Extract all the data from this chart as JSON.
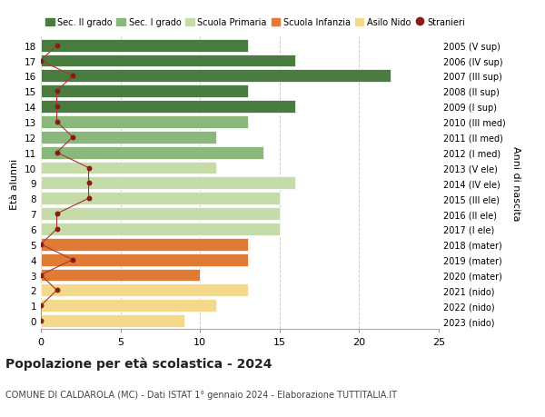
{
  "ages": [
    18,
    17,
    16,
    15,
    14,
    13,
    12,
    11,
    10,
    9,
    8,
    7,
    6,
    5,
    4,
    3,
    2,
    1,
    0
  ],
  "bar_values": [
    13,
    16,
    22,
    13,
    16,
    13,
    11,
    14,
    11,
    16,
    15,
    15,
    15,
    13,
    13,
    10,
    13,
    11,
    9
  ],
  "bar_colors": [
    "#4a7c40",
    "#4a7c40",
    "#4a7c40",
    "#4a7c40",
    "#4a7c40",
    "#8ab87a",
    "#8ab87a",
    "#8ab87a",
    "#c5dba8",
    "#c5dba8",
    "#c5dba8",
    "#c5dba8",
    "#c5dba8",
    "#e07b35",
    "#e07b35",
    "#e07b35",
    "#f5d98a",
    "#f5d98a",
    "#f5d98a"
  ],
  "stranieri_values": [
    1,
    0,
    2,
    1,
    1,
    1,
    2,
    1,
    3,
    3,
    3,
    1,
    1,
    0,
    2,
    0,
    1,
    0,
    0
  ],
  "right_labels": [
    "2005 (V sup)",
    "2006 (IV sup)",
    "2007 (III sup)",
    "2008 (II sup)",
    "2009 (I sup)",
    "2010 (III med)",
    "2011 (II med)",
    "2012 (I med)",
    "2013 (V ele)",
    "2014 (IV ele)",
    "2015 (III ele)",
    "2016 (II ele)",
    "2017 (I ele)",
    "2018 (mater)",
    "2019 (mater)",
    "2020 (mater)",
    "2021 (nido)",
    "2022 (nido)",
    "2023 (nido)"
  ],
  "colors": {
    "sec2": "#4a7c40",
    "sec1": "#8ab87a",
    "primaria": "#c5dba8",
    "infanzia": "#e07b35",
    "nido": "#f5d98a",
    "stranieri_dot": "#8b1a1a",
    "stranieri_line": "#b03030"
  },
  "title": "Popolazione per età scolastica - 2024",
  "subtitle": "COMUNE DI CALDAROLA (MC) - Dati ISTAT 1° gennaio 2024 - Elaborazione TUTTITALIA.IT",
  "ylabel_left": "Età alunni",
  "ylabel_right": "Anni di nascita",
  "xlim": [
    0,
    25
  ],
  "xticks": [
    0,
    5,
    10,
    15,
    20,
    25
  ],
  "background_color": "#ffffff",
  "legend_labels": [
    "Sec. II grado",
    "Sec. I grado",
    "Scuola Primaria",
    "Scuola Infanzia",
    "Asilo Nido",
    "Stranieri"
  ],
  "bar_height": 0.82
}
